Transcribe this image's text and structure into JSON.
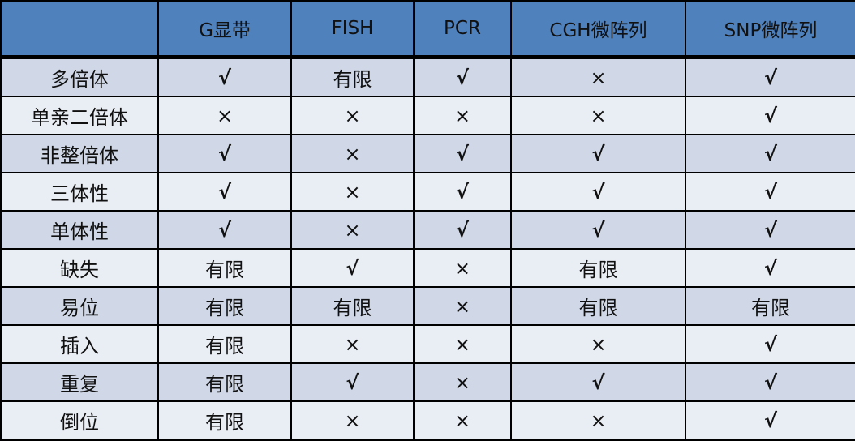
{
  "table": {
    "headers": [
      "",
      "G显带",
      "FISH",
      "PCR",
      "CGH微阵列",
      "SNP微阵列"
    ],
    "rows": [
      [
        "多倍体",
        "√",
        "有限",
        "√",
        "×",
        "√"
      ],
      [
        "单亲二倍体",
        "×",
        "×",
        "×",
        "×",
        "√"
      ],
      [
        "非整倍体",
        "√",
        "×",
        "√",
        "√",
        "√"
      ],
      [
        "三体性",
        "√",
        "×",
        "√",
        "√",
        "√"
      ],
      [
        "单体性",
        "√",
        "×",
        "√",
        "√",
        "√"
      ],
      [
        "缺失",
        "有限",
        "√",
        "×",
        "有限",
        "√"
      ],
      [
        "易位",
        "有限",
        "有限",
        "×",
        "有限",
        "有限"
      ],
      [
        "插入",
        "有限",
        "×",
        "×",
        "×",
        "√"
      ],
      [
        "重复",
        "有限",
        "√",
        "×",
        "√",
        "√"
      ],
      [
        "倒位",
        "有限",
        "×",
        "×",
        "×",
        "√"
      ]
    ]
  },
  "colors": {
    "header": "#4f81bd",
    "row_odd": "#d0d8e8",
    "row_even": "#e9edf4"
  }
}
